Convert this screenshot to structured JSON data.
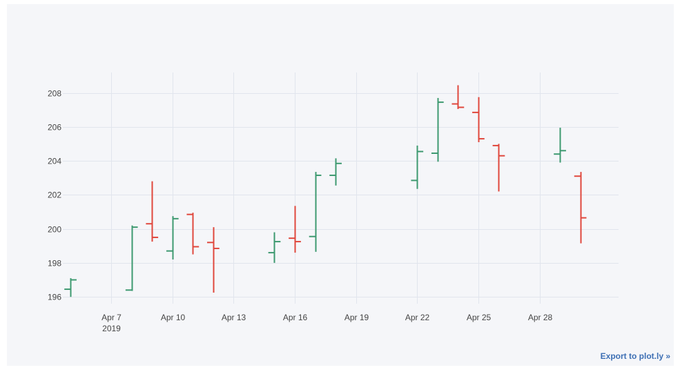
{
  "export_link": "Export to plot.ly »",
  "colors": {
    "increasing": "#3d9970",
    "decreasing": "#e0473c",
    "grid": "#e1e5ed",
    "tick_text": "#444444",
    "link": "#3d6fb4"
  },
  "chart_data": {
    "type": "ohlc",
    "title": "",
    "xlabel": "",
    "ylabel": "",
    "xlim": [
      "2019-04-04T15:00",
      "2019-05-01T21:00"
    ],
    "ylim": [
      195.6,
      209.2
    ],
    "grid": true,
    "legend": "none",
    "y_ticks": [
      196,
      198,
      200,
      202,
      204,
      206,
      208
    ],
    "x_ticks": [
      {
        "date": "2019-04-07",
        "label": "Apr 7",
        "sublabel": "2019"
      },
      {
        "date": "2019-04-10",
        "label": "Apr 10",
        "sublabel": ""
      },
      {
        "date": "2019-04-13",
        "label": "Apr 13",
        "sublabel": ""
      },
      {
        "date": "2019-04-16",
        "label": "Apr 16",
        "sublabel": ""
      },
      {
        "date": "2019-04-19",
        "label": "Apr 19",
        "sublabel": ""
      },
      {
        "date": "2019-04-22",
        "label": "Apr 22",
        "sublabel": ""
      },
      {
        "date": "2019-04-25",
        "label": "Apr 25",
        "sublabel": ""
      },
      {
        "date": "2019-04-28",
        "label": "Apr 28",
        "sublabel": ""
      }
    ],
    "series": [
      {
        "date": "2019-04-05",
        "open": 196.45,
        "high": 197.1,
        "low": 196.0,
        "close": 197.0
      },
      {
        "date": "2019-04-08",
        "open": 196.4,
        "high": 200.2,
        "low": 196.35,
        "close": 200.1
      },
      {
        "date": "2019-04-09",
        "open": 200.3,
        "high": 202.8,
        "low": 199.25,
        "close": 199.5
      },
      {
        "date": "2019-04-10",
        "open": 198.7,
        "high": 200.75,
        "low": 198.2,
        "close": 200.6
      },
      {
        "date": "2019-04-11",
        "open": 200.85,
        "high": 200.95,
        "low": 198.5,
        "close": 198.95
      },
      {
        "date": "2019-04-12",
        "open": 199.2,
        "high": 200.1,
        "low": 196.25,
        "close": 198.85
      },
      {
        "date": "2019-04-15",
        "open": 198.6,
        "high": 199.8,
        "low": 198.0,
        "close": 199.25
      },
      {
        "date": "2019-04-16",
        "open": 199.45,
        "high": 201.35,
        "low": 198.6,
        "close": 199.25
      },
      {
        "date": "2019-04-17",
        "open": 199.55,
        "high": 203.35,
        "low": 198.65,
        "close": 203.15
      },
      {
        "date": "2019-04-18",
        "open": 203.15,
        "high": 204.15,
        "low": 202.55,
        "close": 203.85
      },
      {
        "date": "2019-04-22",
        "open": 202.85,
        "high": 204.9,
        "low": 202.35,
        "close": 204.55
      },
      {
        "date": "2019-04-23",
        "open": 204.45,
        "high": 207.7,
        "low": 203.95,
        "close": 207.45
      },
      {
        "date": "2019-04-24",
        "open": 207.35,
        "high": 208.45,
        "low": 207.05,
        "close": 207.15
      },
      {
        "date": "2019-04-25",
        "open": 206.85,
        "high": 207.75,
        "low": 205.1,
        "close": 205.3
      },
      {
        "date": "2019-04-26",
        "open": 204.9,
        "high": 205.0,
        "low": 202.2,
        "close": 204.3
      },
      {
        "date": "2019-04-29",
        "open": 204.4,
        "high": 205.95,
        "low": 203.9,
        "close": 204.6
      },
      {
        "date": "2019-04-30",
        "open": 203.1,
        "high": 203.35,
        "low": 199.15,
        "close": 200.65
      }
    ]
  }
}
